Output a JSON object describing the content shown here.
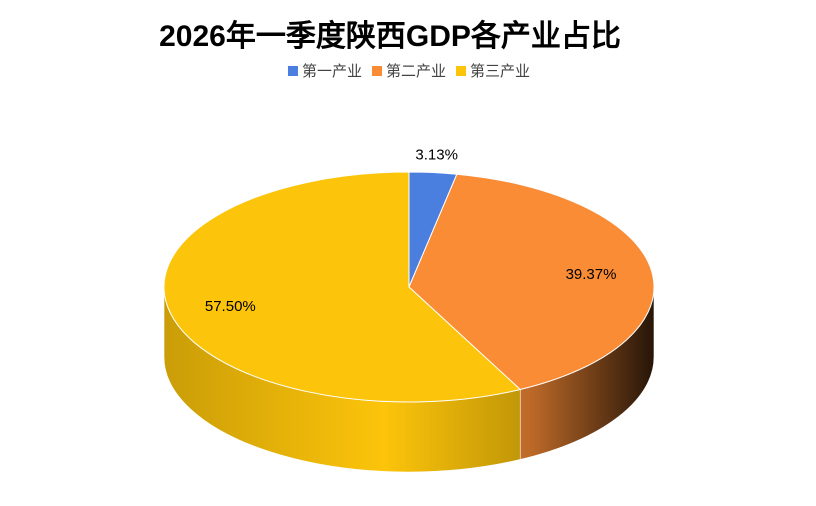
{
  "chart_data": {
    "type": "pie",
    "title": "2026年一季度陕西GDP各产业占比",
    "categories": [
      "第一产业",
      "第二产业",
      "第三产业"
    ],
    "values": [
      3.13,
      39.37,
      57.5
    ],
    "value_labels": [
      "3.13%",
      "39.37%",
      "57.50%"
    ],
    "colors": [
      "#4a7fe0",
      "#fa8c35",
      "#fcc40a"
    ],
    "legend": "top"
  }
}
